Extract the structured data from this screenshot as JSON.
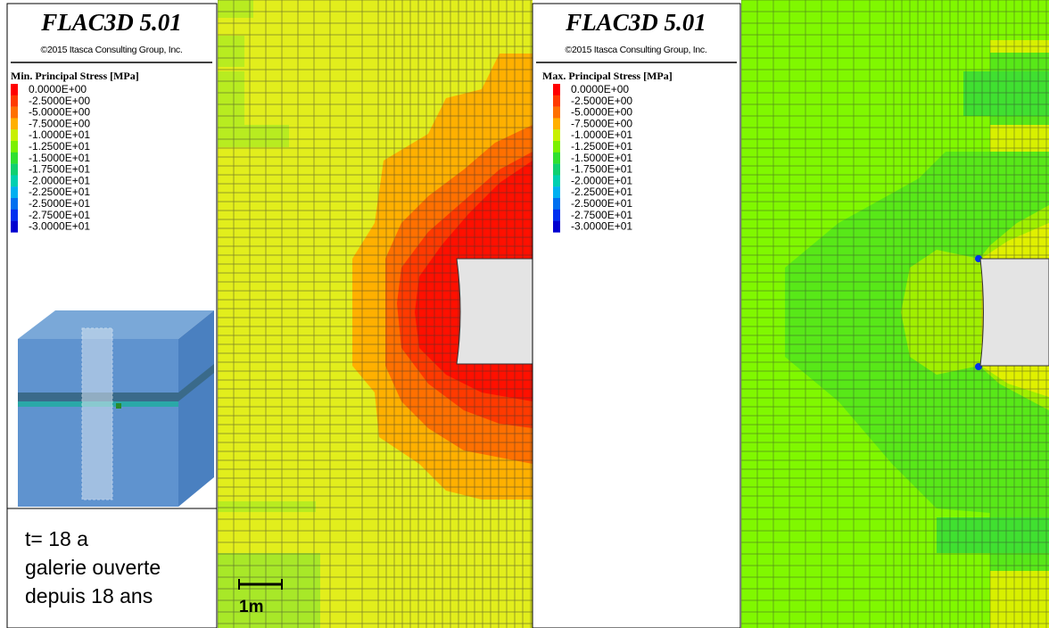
{
  "panels": [
    {
      "header": {
        "title": "FLAC3D 5.01",
        "copyright": "©2015 Itasca Consulting Group, Inc."
      },
      "legend": {
        "title": "Min. Principal Stress [MPa]",
        "entries": [
          {
            "label": "0.0000E+00",
            "color": "#ff0000"
          },
          {
            "label": "-2.5000E+00",
            "color": "#ff3a00"
          },
          {
            "label": "-5.0000E+00",
            "color": "#ff7000"
          },
          {
            "label": "-7.5000E+00",
            "color": "#ffb000"
          },
          {
            "label": "-1.0000E+01",
            "color": "#c8f000"
          },
          {
            "label": "-1.2500E+01",
            "color": "#7cf000"
          },
          {
            "label": "-1.5000E+01",
            "color": "#30e030"
          },
          {
            "label": "-1.7500E+01",
            "color": "#10d070"
          },
          {
            "label": "-2.0000E+01",
            "color": "#00d0b0"
          },
          {
            "label": "-2.2500E+01",
            "color": "#00b0f0"
          },
          {
            "label": "-2.5000E+01",
            "color": "#0070f0"
          },
          {
            "label": "-2.7500E+01",
            "color": "#0030f0"
          },
          {
            "label": "-3.0000E+01",
            "color": "#0000d0"
          }
        ]
      }
    },
    {
      "header": {
        "title": "FLAC3D 5.01",
        "copyright": "©2015 Itasca Consulting Group, Inc."
      },
      "legend": {
        "title": "Max. Principal Stress [MPa]",
        "entries": [
          {
            "label": "0.0000E+00",
            "color": "#ff0000"
          },
          {
            "label": "-2.5000E+00",
            "color": "#ff3a00"
          },
          {
            "label": "-5.0000E+00",
            "color": "#ff7000"
          },
          {
            "label": "-7.5000E+00",
            "color": "#ffb000"
          },
          {
            "label": "-1.0000E+01",
            "color": "#c8f000"
          },
          {
            "label": "-1.2500E+01",
            "color": "#7cf000"
          },
          {
            "label": "-1.5000E+01",
            "color": "#30e030"
          },
          {
            "label": "-1.7500E+01",
            "color": "#10d070"
          },
          {
            "label": "-2.0000E+01",
            "color": "#00d0b0"
          },
          {
            "label": "-2.2500E+01",
            "color": "#00b0f0"
          },
          {
            "label": "-2.5000E+01",
            "color": "#0070f0"
          },
          {
            "label": "-2.7500E+01",
            "color": "#0030f0"
          },
          {
            "label": "-3.0000E+01",
            "color": "#0000d0"
          }
        ]
      }
    }
  ],
  "annotation": {
    "lines": [
      "t= 18 a",
      "galerie ouverte",
      "depuis 18 ans"
    ]
  },
  "scale_bar": {
    "label": "1m"
  }
}
